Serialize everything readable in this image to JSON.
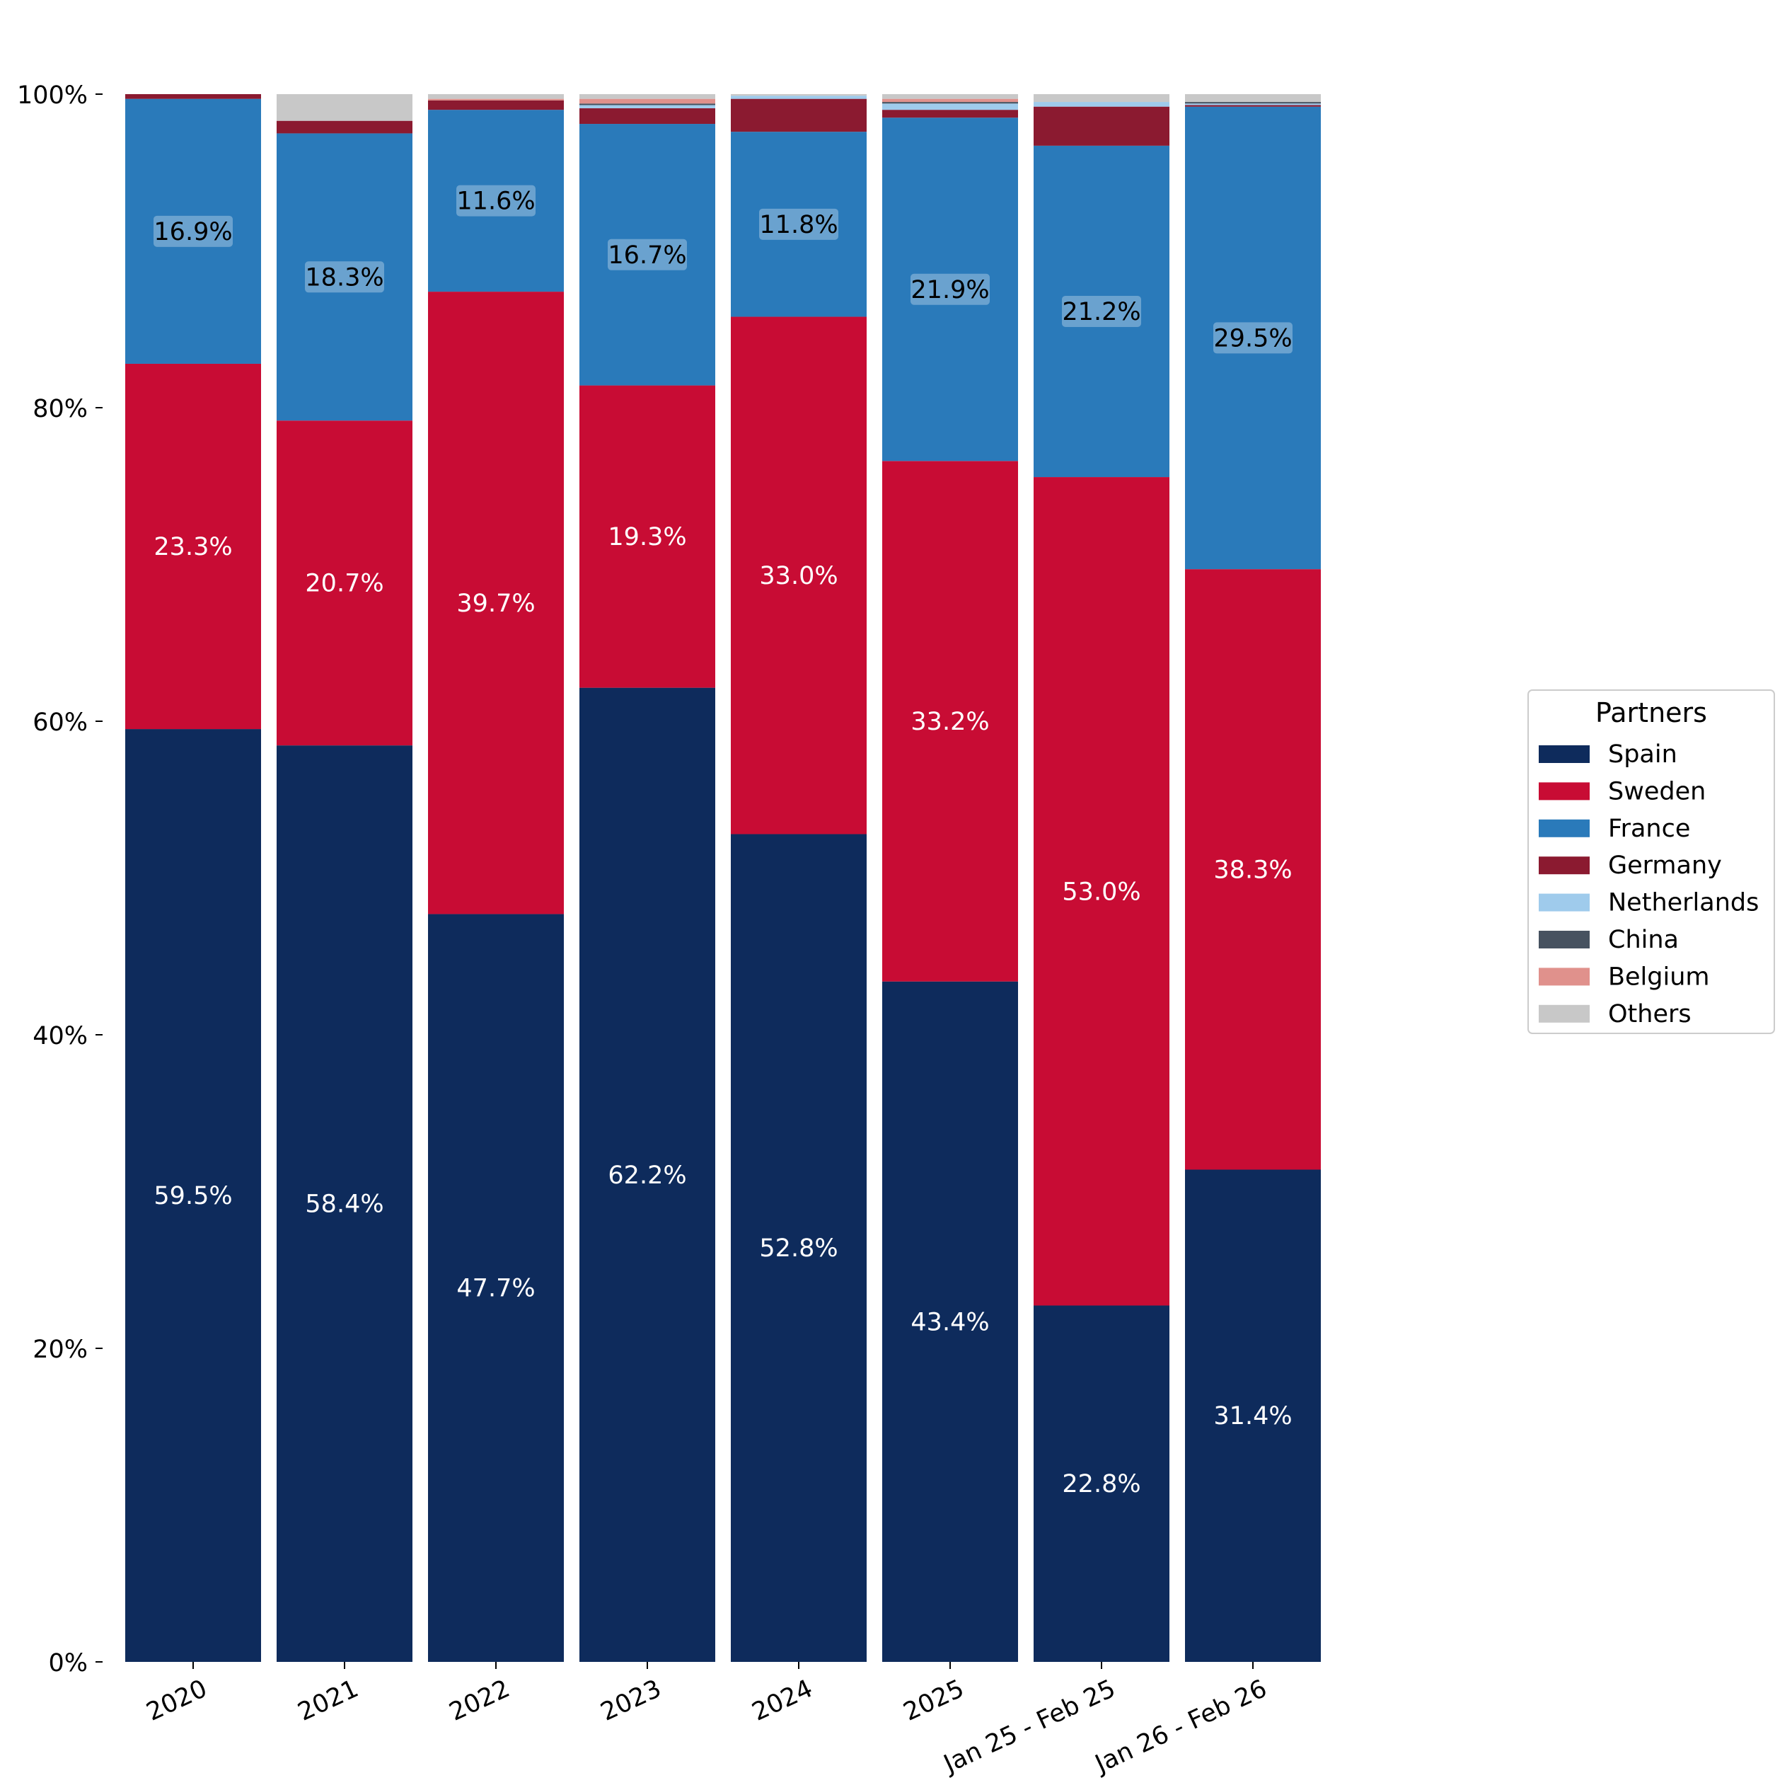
{
  "chart_data": {
    "type": "bar",
    "stacked": true,
    "normalized_percent": true,
    "categories": [
      "2020",
      "2021",
      "2022",
      "2023",
      "2024",
      "2025",
      "Jan 25 - Feb 25",
      "Jan 26 - Feb 26"
    ],
    "ylim": [
      0,
      100
    ],
    "yticks": [
      "0%",
      "20%",
      "40%",
      "60%",
      "80%",
      "100%"
    ],
    "ytick_values": [
      0,
      20,
      40,
      60,
      80,
      100
    ],
    "xlabel": "",
    "ylabel": "",
    "title": "",
    "grid": false,
    "legend": {
      "title": "Partners",
      "placement": "center-right"
    },
    "label_threshold": 10,
    "series": [
      {
        "name": "Spain",
        "color": "#0e2b5c",
        "label_color": "#ffffff",
        "label_box": false,
        "values": [
          59.5,
          58.4,
          47.7,
          62.2,
          52.8,
          43.4,
          22.8,
          31.4
        ]
      },
      {
        "name": "Sweden",
        "color": "#c80c34",
        "label_color": "#ffffff",
        "label_box": false,
        "values": [
          23.3,
          20.7,
          39.7,
          19.3,
          33.0,
          33.2,
          53.0,
          38.3
        ]
      },
      {
        "name": "France",
        "color": "#2a7aba",
        "label_color": "#000000",
        "label_box": true,
        "values": [
          16.9,
          18.3,
          11.6,
          16.7,
          11.8,
          21.9,
          21.2,
          29.5
        ]
      },
      {
        "name": "Germany",
        "color": "#8b1a30",
        "label_color": "#ffffff",
        "label_box": false,
        "values": [
          0.3,
          0.8,
          0.6,
          1.0,
          2.1,
          0.5,
          2.5,
          0.1
        ]
      },
      {
        "name": "Netherlands",
        "color": "#9fcbec",
        "label_color": "#000000",
        "label_box": false,
        "values": [
          0.0,
          0.0,
          0.0,
          0.2,
          0.2,
          0.4,
          0.3,
          0.1
        ]
      },
      {
        "name": "China",
        "color": "#475260",
        "label_color": "#ffffff",
        "label_box": false,
        "values": [
          0.0,
          0.0,
          0.0,
          0.1,
          0.0,
          0.1,
          0.0,
          0.1
        ]
      },
      {
        "name": "Belgium",
        "color": "#e0918c",
        "label_color": "#000000",
        "label_box": false,
        "values": [
          0.0,
          0.0,
          0.1,
          0.3,
          0.0,
          0.2,
          0.0,
          0.0
        ]
      },
      {
        "name": "Others",
        "color": "#c8c8c8",
        "label_color": "#000000",
        "label_box": false,
        "values": [
          0.0,
          1.7,
          0.3,
          0.3,
          0.1,
          0.3,
          0.5,
          0.5
        ]
      }
    ]
  }
}
